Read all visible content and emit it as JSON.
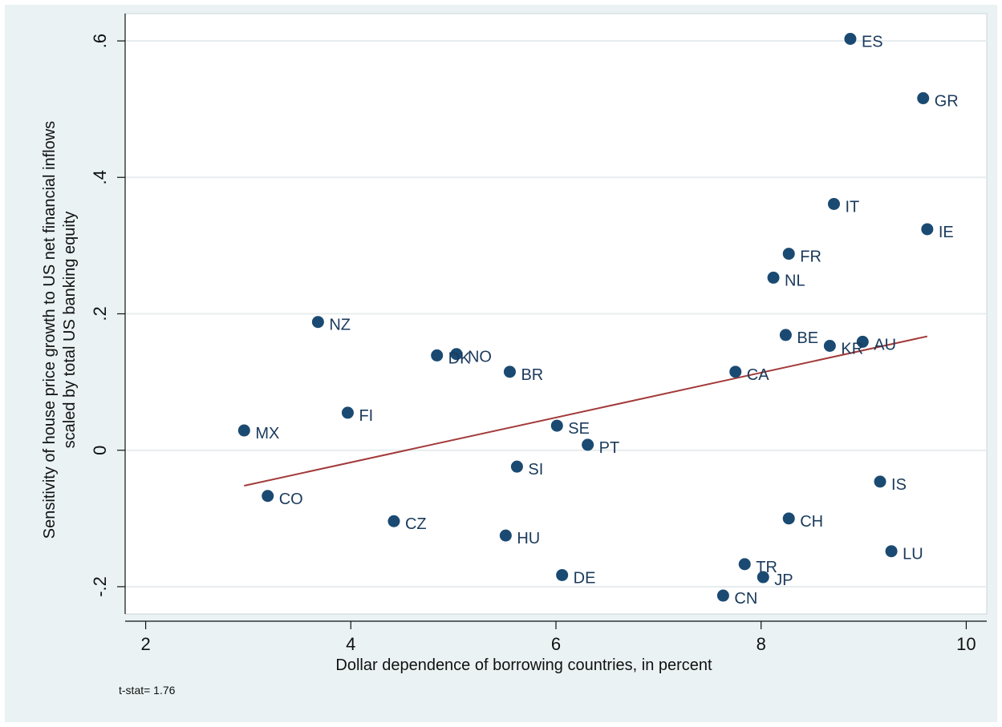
{
  "chart_data": {
    "type": "scatter",
    "xlabel": "Dollar dependence of borrowing countries, in percent",
    "ylabel_lines": [
      "Sensitivity of house price growth to US net financial inflows",
      "scaled by total US banking equity"
    ],
    "xlim": [
      1.8,
      10.2
    ],
    "ylim": [
      -0.24,
      0.64
    ],
    "xticks": [
      2,
      4,
      6,
      8,
      10
    ],
    "xtick_labels": [
      "2",
      "4",
      "6",
      "8",
      "10"
    ],
    "yticks": [
      -0.2,
      0,
      0.2,
      0.4,
      0.6
    ],
    "ytick_labels": [
      "-.2",
      "0",
      ".2",
      ".4",
      ".6"
    ],
    "grid": true,
    "marker_color": "#1a4a72",
    "fit_color": "#a33a3a",
    "points": [
      {
        "label": "ES",
        "x": 8.87,
        "y": 0.603
      },
      {
        "label": "GR",
        "x": 9.58,
        "y": 0.516
      },
      {
        "label": "IT",
        "x": 8.71,
        "y": 0.361
      },
      {
        "label": "IE",
        "x": 9.62,
        "y": 0.324
      },
      {
        "label": "FR",
        "x": 8.27,
        "y": 0.288
      },
      {
        "label": "NL",
        "x": 8.12,
        "y": 0.253
      },
      {
        "label": "NZ",
        "x": 3.68,
        "y": 0.188
      },
      {
        "label": "BE",
        "x": 8.24,
        "y": 0.169
      },
      {
        "label": "KR",
        "x": 8.67,
        "y": 0.153
      },
      {
        "label": "AU",
        "x": 8.99,
        "y": 0.159
      },
      {
        "label": "DK",
        "x": 4.84,
        "y": 0.139
      },
      {
        "label": "NO",
        "x": 5.03,
        "y": 0.141
      },
      {
        "label": "BR",
        "x": 5.55,
        "y": 0.115
      },
      {
        "label": "CA",
        "x": 7.75,
        "y": 0.115
      },
      {
        "label": "FI",
        "x": 3.97,
        "y": 0.055
      },
      {
        "label": "MX",
        "x": 2.96,
        "y": 0.029
      },
      {
        "label": "SE",
        "x": 6.01,
        "y": 0.036
      },
      {
        "label": "PT",
        "x": 6.31,
        "y": 0.008
      },
      {
        "label": "SI",
        "x": 5.62,
        "y": -0.024
      },
      {
        "label": "IS",
        "x": 9.16,
        "y": -0.046
      },
      {
        "label": "CO",
        "x": 3.19,
        "y": -0.067
      },
      {
        "label": "CZ",
        "x": 4.42,
        "y": -0.104
      },
      {
        "label": "CH",
        "x": 8.27,
        "y": -0.1
      },
      {
        "label": "HU",
        "x": 5.51,
        "y": -0.125
      },
      {
        "label": "LU",
        "x": 9.27,
        "y": -0.148
      },
      {
        "label": "TR",
        "x": 7.84,
        "y": -0.167
      },
      {
        "label": "DE",
        "x": 6.06,
        "y": -0.183
      },
      {
        "label": "JP",
        "x": 8.02,
        "y": -0.186
      },
      {
        "label": "CN",
        "x": 7.63,
        "y": -0.213
      }
    ],
    "fit_line": {
      "x": [
        2.96,
        9.62
      ],
      "y": [
        -0.052,
        0.167
      ]
    },
    "note": "t-stat= 1.76"
  }
}
